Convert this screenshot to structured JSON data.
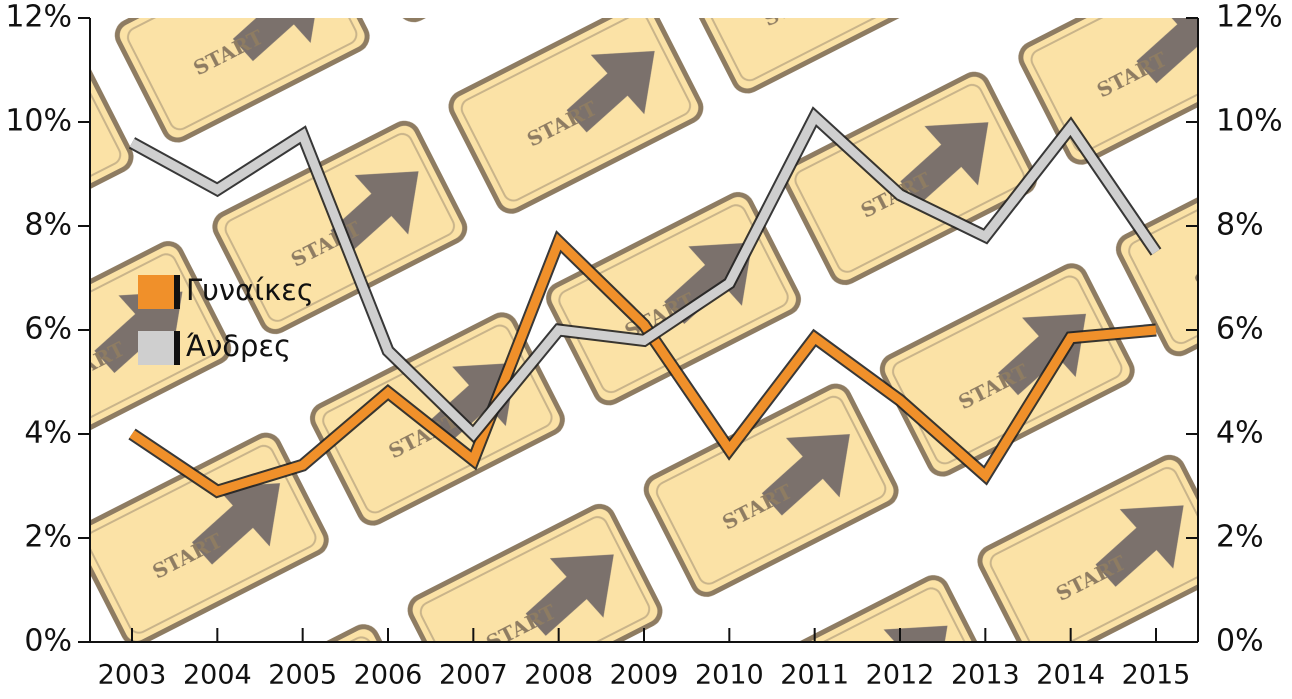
{
  "chart_data": {
    "type": "line",
    "categories": [
      "2003",
      "2004",
      "2005",
      "2006",
      "2007",
      "2008",
      "2009",
      "2010",
      "2011",
      "2012",
      "2013",
      "2014",
      "2015"
    ],
    "series": [
      {
        "name": "Γυναίκες",
        "color": "#f0902a",
        "values": [
          4.0,
          2.9,
          3.4,
          4.8,
          3.5,
          7.7,
          6.1,
          3.7,
          5.85,
          4.65,
          3.2,
          5.85,
          6.0
        ]
      },
      {
        "name": "Άνδρες",
        "color": "#cfcfcf",
        "values": [
          9.6,
          8.7,
          9.75,
          5.6,
          4.0,
          6.0,
          5.8,
          6.9,
          10.1,
          8.6,
          7.8,
          9.9,
          7.5
        ]
      }
    ],
    "ylim": [
      0,
      12
    ],
    "yticks": [
      {
        "value": 0,
        "label": "0%"
      },
      {
        "value": 2,
        "label": "2%"
      },
      {
        "value": 4,
        "label": "4%"
      },
      {
        "value": 6,
        "label": "6%"
      },
      {
        "value": 8,
        "label": "8%"
      },
      {
        "value": 10,
        "label": "10%"
      },
      {
        "value": 12,
        "label": "12%"
      }
    ]
  }
}
